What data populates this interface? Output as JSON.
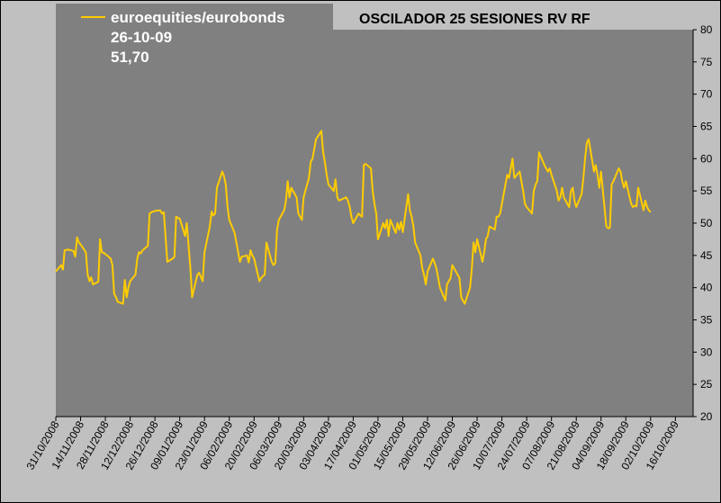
{
  "chart_data": {
    "type": "line",
    "title": "OSCILADOR 25 SESIONES RV RF",
    "legend": {
      "position": "top-left",
      "series_name": "euroequities/eurobonds",
      "date_label": "26-10-09",
      "value_label": "51,70"
    },
    "ylim": [
      20,
      80
    ],
    "ytick_labels": [
      "20",
      "25",
      "30",
      "35",
      "40",
      "45",
      "50",
      "55",
      "60",
      "65",
      "70",
      "75",
      "80"
    ],
    "xtick_labels": [
      "31/10/2008",
      "14/11/2008",
      "28/11/2008",
      "12/12/2008",
      "26/12/2008",
      "09/01/2009",
      "23/01/2009",
      "06/02/2009",
      "20/02/2009",
      "06/03/2009",
      "20/03/2009",
      "03/04/2009",
      "17/04/2009",
      "01/05/2009",
      "15/05/2009",
      "29/05/2009",
      "12/06/2009",
      "26/06/2009",
      "10/07/2009",
      "24/07/2009",
      "07/08/2009",
      "21/08/2009",
      "04/09/2009",
      "18/09/2009",
      "02/10/2009",
      "16/10/2009"
    ],
    "x_range": [
      "2008-10-31",
      "2009-10-26"
    ],
    "grid": false,
    "series": [
      {
        "name": "euroequities/eurobonds",
        "color": "#ffcc00",
        "points": [
          [
            "2008-10-31",
            42.5
          ],
          [
            "2008-11-03",
            43.5
          ],
          [
            "2008-11-04",
            42.8
          ],
          [
            "2008-11-05",
            45.8
          ],
          [
            "2008-11-07",
            45.9
          ],
          [
            "2008-11-10",
            45.7
          ],
          [
            "2008-11-11",
            44.8
          ],
          [
            "2008-11-12",
            47.8
          ],
          [
            "2008-11-13",
            47.0
          ],
          [
            "2008-11-14",
            46.7
          ],
          [
            "2008-11-17",
            45.5
          ],
          [
            "2008-11-18",
            42.0
          ],
          [
            "2008-11-19",
            41.0
          ],
          [
            "2008-11-20",
            41.6
          ],
          [
            "2008-11-21",
            40.5
          ],
          [
            "2008-11-24",
            40.9
          ],
          [
            "2008-11-25",
            47.5
          ],
          [
            "2008-11-26",
            45.5
          ],
          [
            "2008-11-27",
            45.4
          ],
          [
            "2008-11-28",
            45.2
          ],
          [
            "2008-12-01",
            44.5
          ],
          [
            "2008-12-02",
            43.5
          ],
          [
            "2008-12-03",
            39.0
          ],
          [
            "2008-12-04",
            38.5
          ],
          [
            "2008-12-05",
            37.8
          ],
          [
            "2008-12-08",
            37.5
          ],
          [
            "2008-12-09",
            41.2
          ],
          [
            "2008-12-10",
            38.5
          ],
          [
            "2008-12-11",
            40.0
          ],
          [
            "2008-12-12",
            41.0
          ],
          [
            "2008-12-15",
            42.0
          ],
          [
            "2008-12-16",
            44.5
          ],
          [
            "2008-12-17",
            45.5
          ],
          [
            "2008-12-18",
            45.3
          ],
          [
            "2008-12-19",
            45.8
          ],
          [
            "2008-12-22",
            46.5
          ],
          [
            "2008-12-23",
            51.5
          ],
          [
            "2008-12-24",
            51.7
          ],
          [
            "2008-12-26",
            51.9
          ],
          [
            "2008-12-29",
            52.0
          ],
          [
            "2008-12-30",
            51.5
          ],
          [
            "2008-12-31",
            51.7
          ],
          [
            "2009-01-02",
            44.0
          ],
          [
            "2009-01-05",
            44.5
          ],
          [
            "2009-01-06",
            44.8
          ],
          [
            "2009-01-07",
            51.0
          ],
          [
            "2009-01-08",
            50.8
          ],
          [
            "2009-01-09",
            50.7
          ],
          [
            "2009-01-12",
            48.0
          ],
          [
            "2009-01-13",
            50.0
          ],
          [
            "2009-01-14",
            46.5
          ],
          [
            "2009-01-15",
            43.0
          ],
          [
            "2009-01-16",
            38.5
          ],
          [
            "2009-01-19",
            42.0
          ],
          [
            "2009-01-20",
            42.3
          ],
          [
            "2009-01-21",
            41.6
          ],
          [
            "2009-01-22",
            41.0
          ],
          [
            "2009-01-23",
            45.5
          ],
          [
            "2009-01-26",
            49.5
          ],
          [
            "2009-01-27",
            51.8
          ],
          [
            "2009-01-28",
            51.2
          ],
          [
            "2009-01-29",
            51.5
          ],
          [
            "2009-01-30",
            55.5
          ],
          [
            "2009-02-02",
            58.0
          ],
          [
            "2009-02-03",
            57.3
          ],
          [
            "2009-02-04",
            56.0
          ],
          [
            "2009-02-05",
            52.5
          ],
          [
            "2009-02-06",
            50.5
          ],
          [
            "2009-02-09",
            48.5
          ],
          [
            "2009-02-10",
            47.0
          ],
          [
            "2009-02-11",
            45.5
          ],
          [
            "2009-02-12",
            44.0
          ],
          [
            "2009-02-13",
            44.8
          ],
          [
            "2009-02-16",
            45.0
          ],
          [
            "2009-02-17",
            43.9
          ],
          [
            "2009-02-18",
            45.8
          ],
          [
            "2009-02-19",
            45.0
          ],
          [
            "2009-02-20",
            44.5
          ],
          [
            "2009-02-23",
            41.0
          ],
          [
            "2009-02-24",
            41.5
          ],
          [
            "2009-02-25",
            41.8
          ],
          [
            "2009-02-26",
            42.0
          ],
          [
            "2009-02-27",
            47.0
          ],
          [
            "2009-03-02",
            44.0
          ],
          [
            "2009-03-03",
            43.5
          ],
          [
            "2009-03-04",
            43.8
          ],
          [
            "2009-03-05",
            49.0
          ],
          [
            "2009-03-06",
            50.5
          ],
          [
            "2009-03-09",
            52.0
          ],
          [
            "2009-03-10",
            53.5
          ],
          [
            "2009-03-11",
            56.5
          ],
          [
            "2009-03-12",
            54.0
          ],
          [
            "2009-03-13",
            55.5
          ],
          [
            "2009-03-16",
            54.0
          ],
          [
            "2009-03-17",
            51.5
          ],
          [
            "2009-03-18",
            51.0
          ],
          [
            "2009-03-19",
            50.5
          ],
          [
            "2009-03-20",
            54.0
          ],
          [
            "2009-03-23",
            57.0
          ],
          [
            "2009-03-24",
            59.5
          ],
          [
            "2009-03-25",
            60.0
          ],
          [
            "2009-03-26",
            61.5
          ],
          [
            "2009-03-27",
            63.0
          ],
          [
            "2009-03-30",
            64.3
          ],
          [
            "2009-03-31",
            61.0
          ],
          [
            "2009-04-01",
            59.5
          ],
          [
            "2009-04-02",
            57.5
          ],
          [
            "2009-04-03",
            56.0
          ],
          [
            "2009-04-06",
            55.0
          ],
          [
            "2009-04-07",
            56.8
          ],
          [
            "2009-04-08",
            54.0
          ],
          [
            "2009-04-09",
            53.5
          ],
          [
            "2009-04-13",
            54.0
          ],
          [
            "2009-04-14",
            53.5
          ],
          [
            "2009-04-15",
            52.5
          ],
          [
            "2009-04-16",
            51.0
          ],
          [
            "2009-04-17",
            50.0
          ],
          [
            "2009-04-20",
            51.5
          ],
          [
            "2009-04-21",
            51.2
          ],
          [
            "2009-04-22",
            51.0
          ],
          [
            "2009-04-23",
            59.0
          ],
          [
            "2009-04-24",
            59.2
          ],
          [
            "2009-04-27",
            58.5
          ],
          [
            "2009-04-28",
            55.0
          ],
          [
            "2009-04-29",
            53.0
          ],
          [
            "2009-04-30",
            51.5
          ],
          [
            "2009-05-01",
            47.5
          ],
          [
            "2009-05-04",
            50.0
          ],
          [
            "2009-05-05",
            49.2
          ],
          [
            "2009-05-06",
            50.5
          ],
          [
            "2009-05-07",
            48.0
          ],
          [
            "2009-05-08",
            50.5
          ],
          [
            "2009-05-11",
            48.5
          ],
          [
            "2009-05-12",
            50.0
          ],
          [
            "2009-05-13",
            49.0
          ],
          [
            "2009-05-14",
            50.2
          ],
          [
            "2009-05-15",
            48.6
          ],
          [
            "2009-05-18",
            54.5
          ],
          [
            "2009-05-19",
            52.0
          ],
          [
            "2009-05-20",
            51.0
          ],
          [
            "2009-05-21",
            49.5
          ],
          [
            "2009-05-22",
            47.0
          ],
          [
            "2009-05-25",
            45.0
          ],
          [
            "2009-05-26",
            43.0
          ],
          [
            "2009-05-27",
            42.0
          ],
          [
            "2009-05-28",
            40.5
          ],
          [
            "2009-05-29",
            42.5
          ],
          [
            "2009-06-01",
            44.5
          ],
          [
            "2009-06-02",
            43.8
          ],
          [
            "2009-06-03",
            43.0
          ],
          [
            "2009-06-04",
            41.5
          ],
          [
            "2009-06-05",
            40.0
          ],
          [
            "2009-06-08",
            38.0
          ],
          [
            "2009-06-09",
            40.5
          ],
          [
            "2009-06-10",
            41.0
          ],
          [
            "2009-06-11",
            41.5
          ],
          [
            "2009-06-12",
            43.5
          ],
          [
            "2009-06-15",
            42.0
          ],
          [
            "2009-06-16",
            41.5
          ],
          [
            "2009-06-17",
            38.5
          ],
          [
            "2009-06-18",
            38.0
          ],
          [
            "2009-06-19",
            37.5
          ],
          [
            "2009-06-22",
            40.0
          ],
          [
            "2009-06-23",
            43.0
          ],
          [
            "2009-06-24",
            47.0
          ],
          [
            "2009-06-25",
            45.5
          ],
          [
            "2009-06-26",
            47.5
          ],
          [
            "2009-06-29",
            44.0
          ],
          [
            "2009-06-30",
            45.5
          ],
          [
            "2009-07-01",
            47.5
          ],
          [
            "2009-07-02",
            48.0
          ],
          [
            "2009-07-03",
            49.5
          ],
          [
            "2009-07-06",
            49.0
          ],
          [
            "2009-07-07",
            51.0
          ],
          [
            "2009-07-08",
            51.0
          ],
          [
            "2009-07-09",
            51.5
          ],
          [
            "2009-07-10",
            53.0
          ],
          [
            "2009-07-13",
            57.5
          ],
          [
            "2009-07-14",
            57.0
          ],
          [
            "2009-07-15",
            58.5
          ],
          [
            "2009-07-16",
            60.0
          ],
          [
            "2009-07-17",
            57.0
          ],
          [
            "2009-07-20",
            58.0
          ],
          [
            "2009-07-21",
            56.5
          ],
          [
            "2009-07-22",
            55.0
          ],
          [
            "2009-07-23",
            53.0
          ],
          [
            "2009-07-24",
            52.5
          ],
          [
            "2009-07-27",
            51.5
          ],
          [
            "2009-07-28",
            55.0
          ],
          [
            "2009-07-29",
            56.0
          ],
          [
            "2009-07-30",
            56.5
          ],
          [
            "2009-07-31",
            61.0
          ],
          [
            "2009-08-03",
            59.0
          ],
          [
            "2009-08-04",
            58.5
          ],
          [
            "2009-08-05",
            58.0
          ],
          [
            "2009-08-06",
            58.5
          ],
          [
            "2009-08-07",
            57.5
          ],
          [
            "2009-08-10",
            55.0
          ],
          [
            "2009-08-11",
            53.5
          ],
          [
            "2009-08-12",
            54.0
          ],
          [
            "2009-08-13",
            55.5
          ],
          [
            "2009-08-14",
            54.0
          ],
          [
            "2009-08-17",
            52.5
          ],
          [
            "2009-08-18",
            55.0
          ],
          [
            "2009-08-19",
            55.5
          ],
          [
            "2009-08-20",
            53.5
          ],
          [
            "2009-08-21",
            52.5
          ],
          [
            "2009-08-24",
            54.5
          ],
          [
            "2009-08-25",
            57.0
          ],
          [
            "2009-08-26",
            60.0
          ],
          [
            "2009-08-27",
            62.5
          ],
          [
            "2009-08-28",
            63.0
          ],
          [
            "2009-08-31",
            58.0
          ],
          [
            "2009-09-01",
            59.0
          ],
          [
            "2009-09-02",
            57.5
          ],
          [
            "2009-09-03",
            55.5
          ],
          [
            "2009-09-04",
            58.0
          ],
          [
            "2009-09-07",
            49.5
          ],
          [
            "2009-09-08",
            49.2
          ],
          [
            "2009-09-09",
            49.3
          ],
          [
            "2009-09-10",
            56.0
          ],
          [
            "2009-09-11",
            56.5
          ],
          [
            "2009-09-14",
            58.5
          ],
          [
            "2009-09-15",
            58.0
          ],
          [
            "2009-09-16",
            56.5
          ],
          [
            "2009-09-17",
            55.5
          ],
          [
            "2009-09-18",
            56.5
          ],
          [
            "2009-09-21",
            53.0
          ],
          [
            "2009-09-22",
            52.5
          ],
          [
            "2009-09-23",
            52.7
          ],
          [
            "2009-09-24",
            52.6
          ],
          [
            "2009-09-25",
            55.5
          ],
          [
            "2009-09-28",
            52.0
          ],
          [
            "2009-09-29",
            53.5
          ],
          [
            "2009-09-30",
            52.5
          ],
          [
            "2009-10-01",
            52.0
          ],
          [
            "2009-10-02",
            51.7
          ]
        ]
      }
    ]
  }
}
